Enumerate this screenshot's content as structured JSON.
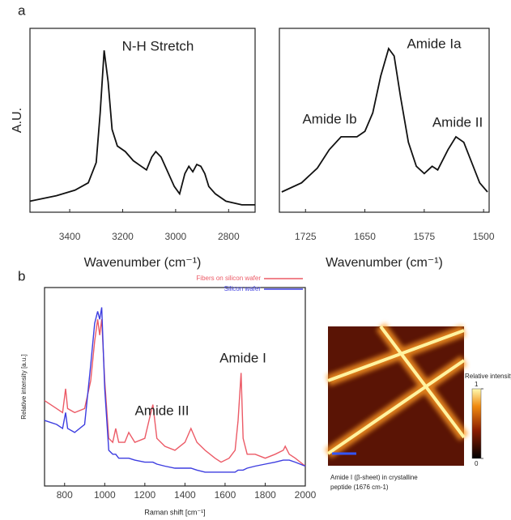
{
  "chart_data": [
    {
      "type": "line",
      "panel_label": "a",
      "xlabel": "Wavenumber (cm⁻¹)",
      "ylabel": "A.U.",
      "xlim": [
        3550,
        2700
      ],
      "ylim": [
        0,
        100
      ],
      "xticks": [
        3400,
        3200,
        3000,
        2800
      ],
      "color": "#111111",
      "annotations": [
        "N-H Stretch"
      ],
      "x": [
        3550,
        3450,
        3380,
        3330,
        3300,
        3285,
        3270,
        3255,
        3240,
        3220,
        3190,
        3160,
        3130,
        3110,
        3090,
        3075,
        3055,
        3030,
        3005,
        2985,
        2965,
        2950,
        2935,
        2920,
        2905,
        2890,
        2875,
        2850,
        2810,
        2750,
        2700
      ],
      "values": [
        6,
        9,
        12,
        16,
        27,
        54,
        88,
        71,
        45,
        36,
        33,
        28,
        25,
        23,
        30,
        33,
        30,
        22,
        14,
        10,
        21,
        25,
        22,
        26,
        25,
        21,
        14,
        10,
        6,
        4,
        4
      ]
    },
    {
      "type": "line",
      "xlabel": "Wavenumber (cm⁻¹)",
      "xlim": [
        1758,
        1493
      ],
      "ylim": [
        0,
        100
      ],
      "xticks": [
        1725,
        1650,
        1575,
        1500
      ],
      "color": "#111111",
      "annotations": [
        "Amide Ib",
        "Amide Ia",
        "Amide II"
      ],
      "x": [
        1755,
        1730,
        1710,
        1695,
        1680,
        1670,
        1660,
        1650,
        1640,
        1630,
        1620,
        1613,
        1605,
        1595,
        1585,
        1575,
        1565,
        1558,
        1545,
        1535,
        1525,
        1515,
        1505,
        1495
      ],
      "values": [
        11,
        16,
        24,
        34,
        41,
        41,
        41,
        44,
        54,
        74,
        89,
        85,
        63,
        38,
        25,
        21,
        25,
        23,
        34,
        41,
        38,
        27,
        16,
        11
      ]
    },
    {
      "type": "line",
      "panel_label": "b",
      "xlabel": "Raman shift [cm⁻¹]",
      "ylabel": "Relative intensity [a.u.]",
      "xlim": [
        700,
        2000
      ],
      "ylim": [
        0,
        100
      ],
      "xticks": [
        800,
        1000,
        1200,
        1400,
        1600,
        1800,
        2000
      ],
      "annotations": [
        "Amide III",
        "Amide I"
      ],
      "x": [
        700,
        760,
        790,
        805,
        815,
        850,
        900,
        930,
        950,
        965,
        975,
        985,
        1000,
        1020,
        1040,
        1055,
        1070,
        1100,
        1120,
        1150,
        1200,
        1230,
        1240,
        1260,
        1300,
        1350,
        1400,
        1430,
        1460,
        1500,
        1550,
        1580,
        1620,
        1650,
        1665,
        1680,
        1690,
        1710,
        1750,
        1800,
        1850,
        1890,
        1900,
        1920,
        1950,
        2000
      ],
      "series": [
        {
          "name": "Fibers on silicon wafer",
          "color": "#ec5a66",
          "values": [
            43,
            39,
            37,
            49,
            39,
            37,
            39,
            53,
            73,
            84,
            76,
            84,
            53,
            24,
            22,
            29,
            22,
            22,
            27,
            22,
            24,
            37,
            41,
            24,
            20,
            18,
            22,
            29,
            22,
            18,
            14,
            12,
            14,
            18,
            33,
            57,
            24,
            16,
            16,
            14,
            16,
            18,
            20,
            16,
            14,
            10
          ]
        },
        {
          "name": "Silicon wafer",
          "color": "#3d3de0",
          "values": [
            33,
            31,
            29,
            37,
            29,
            27,
            31,
            61,
            82,
            88,
            84,
            90,
            49,
            18,
            16,
            16,
            14,
            14,
            14,
            13,
            12,
            12,
            12,
            11,
            10,
            9,
            9,
            9,
            8,
            7,
            7,
            7,
            7,
            7,
            8,
            8,
            8,
            9,
            10,
            11,
            12,
            13,
            13,
            13,
            12,
            10
          ]
        }
      ]
    },
    {
      "type": "image",
      "caption": [
        "Amide I (β-sheet) in crystalline",
        "peptide (1676 cm-1)"
      ],
      "colorbar_label": "Relative intensity",
      "clim": [
        0,
        1
      ],
      "colorbar_ticks": [
        0,
        1
      ]
    }
  ]
}
